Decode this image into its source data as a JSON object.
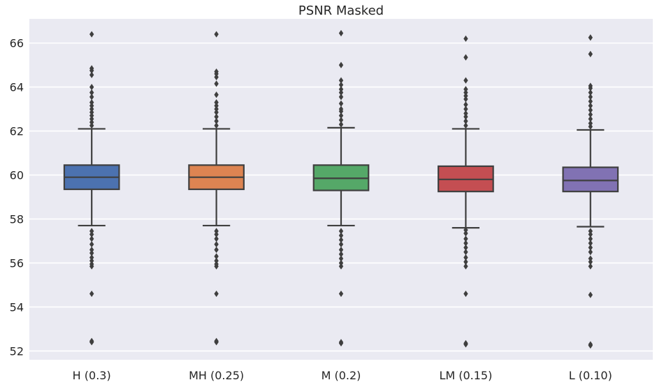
{
  "chart_data": {
    "type": "box",
    "title": "PSNR Masked",
    "xlabel": "",
    "ylabel": "",
    "ylim": [
      51.6,
      67.1
    ],
    "yticks": [
      52,
      54,
      56,
      58,
      60,
      62,
      64,
      66
    ],
    "grid": true,
    "categories": [
      "H (0.3)",
      "MH (0.25)",
      "M (0.2)",
      "LM (0.15)",
      "L (0.10)"
    ],
    "colors": [
      "#4c72b0",
      "#dd8452",
      "#55a868",
      "#c44e52",
      "#8172b3"
    ],
    "boxes": [
      {
        "category": "H (0.3)",
        "whisker_low": 57.7,
        "q1": 59.35,
        "median": 59.9,
        "q3": 60.45,
        "whisker_high": 62.1,
        "outliers": [
          52.4,
          52.45,
          54.6,
          55.85,
          55.95,
          56.1,
          56.25,
          56.45,
          56.6,
          56.85,
          57.1,
          57.3,
          57.45,
          62.25,
          62.4,
          62.55,
          62.7,
          62.85,
          63.0,
          63.15,
          63.3,
          63.55,
          63.75,
          64.0,
          64.55,
          64.75,
          64.85,
          66.4
        ]
      },
      {
        "category": "MH (0.25)",
        "whisker_low": 57.7,
        "q1": 59.35,
        "median": 59.9,
        "q3": 60.45,
        "whisker_high": 62.1,
        "outliers": [
          52.4,
          52.45,
          54.6,
          55.85,
          55.95,
          56.1,
          56.3,
          56.6,
          56.85,
          57.1,
          57.3,
          57.45,
          62.25,
          62.45,
          62.65,
          62.85,
          63.0,
          63.15,
          63.3,
          63.65,
          64.15,
          64.45,
          64.6,
          64.7,
          66.4
        ]
      },
      {
        "category": "M (0.2)",
        "whisker_low": 57.7,
        "q1": 59.3,
        "median": 59.85,
        "q3": 60.45,
        "whisker_high": 62.15,
        "outliers": [
          52.35,
          52.4,
          54.6,
          55.85,
          56.0,
          56.2,
          56.4,
          56.6,
          56.85,
          57.05,
          57.25,
          57.45,
          62.3,
          62.5,
          62.7,
          62.9,
          63.0,
          63.25,
          63.55,
          63.75,
          63.9,
          64.1,
          64.3,
          65.0,
          66.45
        ]
      },
      {
        "category": "LM (0.15)",
        "whisker_low": 57.6,
        "q1": 59.25,
        "median": 59.8,
        "q3": 60.4,
        "whisker_high": 62.1,
        "outliers": [
          52.3,
          52.35,
          54.6,
          55.85,
          56.05,
          56.25,
          56.5,
          56.7,
          56.9,
          57.1,
          57.35,
          57.5,
          62.25,
          62.45,
          62.65,
          62.8,
          63.0,
          63.2,
          63.45,
          63.6,
          63.75,
          63.9,
          64.3,
          65.35,
          66.2
        ]
      },
      {
        "category": "L (0.10)",
        "whisker_low": 57.65,
        "q1": 59.25,
        "median": 59.75,
        "q3": 60.35,
        "whisker_high": 62.05,
        "outliers": [
          52.25,
          52.3,
          54.55,
          55.85,
          56.05,
          56.2,
          56.5,
          56.7,
          56.9,
          57.1,
          57.3,
          57.45,
          62.2,
          62.35,
          62.55,
          62.75,
          62.95,
          63.15,
          63.35,
          63.55,
          63.75,
          63.95,
          64.05,
          65.5,
          66.25
        ]
      }
    ]
  }
}
